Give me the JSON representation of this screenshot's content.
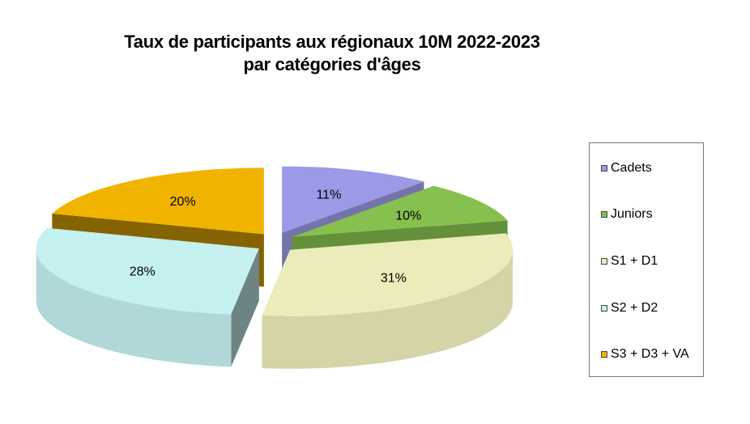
{
  "title_lines": [
    "Taux de participants aux régionaux 10M 2022-2023",
    "par catégories d'âges"
  ],
  "chart_data": {
    "type": "pie",
    "style": "3d-exploded",
    "title": "Taux de participants aux régionaux 10M 2022-2023 par catégories d'âges",
    "categories": [
      "Cadets",
      "Juniors",
      "S1 + D1",
      "S2 + D2",
      "S3 + D3 + VA"
    ],
    "values": [
      11,
      10,
      31,
      28,
      20
    ],
    "labels": [
      "11%",
      "10%",
      "31%",
      "28%",
      "20%"
    ],
    "colors": [
      "#9a9ae6",
      "#86c04e",
      "#ececba",
      "#c4f0f0",
      "#f0b400"
    ],
    "legend_position": "right"
  }
}
